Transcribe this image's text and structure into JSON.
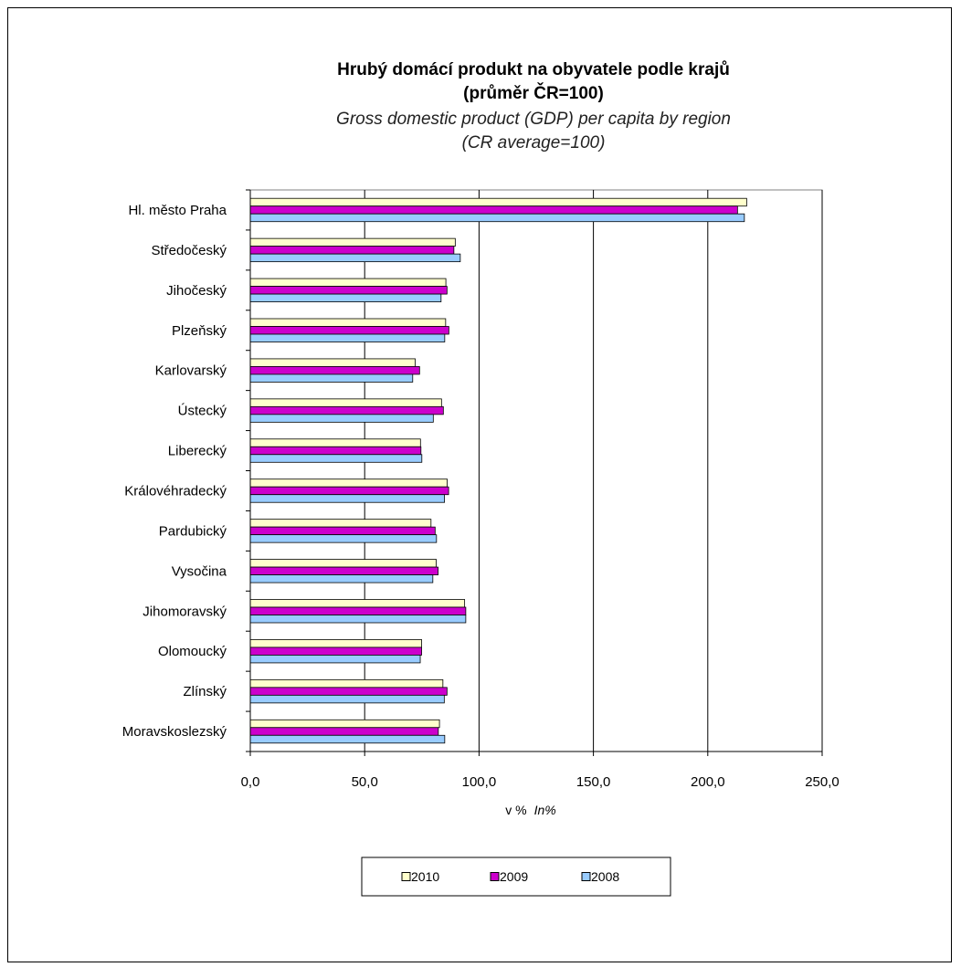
{
  "chart_data": {
    "type": "bar",
    "orientation": "horizontal",
    "title": "Hrubý domácí produkt na obyvatele podle krajů",
    "title_line2": "(průměr ČR=100)",
    "subtitle": "Gross domestic product (GDP) per capita by region",
    "subtitle_line2": "(CR average=100)",
    "xlabel": "v %",
    "xlabel_en": "In%",
    "xlim": [
      0,
      250
    ],
    "xticks": [
      0,
      50,
      100,
      150,
      200,
      250
    ],
    "xtick_labels": [
      "0,0",
      "50,0",
      "100,0",
      "150,0",
      "200,0",
      "250,0"
    ],
    "grid": "vertical",
    "legend_position": "bottom",
    "categories": [
      "Hl. město Praha",
      "Středočeský",
      "Jihočeský",
      "Plzeňský",
      "Karlovarský",
      "Ústecký",
      "Liberecký",
      "Královéhradecký",
      "Pardubický",
      "Vysočina",
      "Jihomoravský",
      "Olomoucký",
      "Zlínský",
      "Moravskoslezský"
    ],
    "series": [
      {
        "name": "2010",
        "color": "#ffffcc",
        "values": [
          217.0,
          89.6,
          85.5,
          85.4,
          72.1,
          83.6,
          74.4,
          86.1,
          79.0,
          81.3,
          93.7,
          74.9,
          84.2,
          82.7
        ]
      },
      {
        "name": "2009",
        "color": "#cc00cc",
        "values": [
          213.0,
          89.0,
          86.0,
          86.8,
          74.0,
          84.4,
          74.6,
          86.7,
          80.8,
          82.1,
          94.2,
          74.9,
          86.0,
          82.2
        ]
      },
      {
        "name": "2008",
        "color": "#99ccff",
        "values": [
          216.0,
          91.8,
          83.4,
          85.0,
          71.0,
          80.0,
          75.0,
          84.9,
          81.4,
          79.8,
          94.2,
          74.3,
          84.8,
          85.0
        ]
      }
    ]
  }
}
